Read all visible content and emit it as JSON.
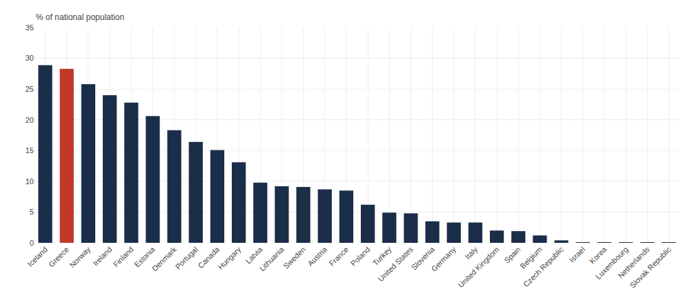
{
  "chart_data": {
    "type": "bar",
    "ylabel": "% of national population",
    "categories": [
      "Iceland",
      "Greece",
      "Norway",
      "Ireland",
      "Finland",
      "Estonia",
      "Denmark",
      "Portugal",
      "Canada",
      "Hungary",
      "Latvia",
      "Lithuania",
      "Sweden",
      "Austria",
      "France",
      "Poland",
      "Turkey",
      "United States",
      "Slovenia",
      "Germany",
      "Italy",
      "United Kingdom",
      "Spain",
      "Belgium",
      "Czech Republic",
      "Israel",
      "Korea",
      "Luxembourg",
      "Netherlands",
      "Slovak Republic"
    ],
    "values": [
      28.9,
      28.3,
      25.8,
      24.0,
      22.8,
      20.6,
      18.3,
      16.4,
      15.1,
      13.1,
      9.8,
      9.2,
      9.1,
      8.7,
      8.5,
      6.2,
      4.9,
      4.8,
      3.5,
      3.3,
      3.3,
      2.0,
      1.9,
      1.2,
      0.4,
      0.05,
      0.05,
      0.05,
      0.05,
      0.05
    ],
    "colors": [
      "#1a2e4a",
      "#c0392b",
      "#1a2e4a",
      "#1a2e4a",
      "#1a2e4a",
      "#1a2e4a",
      "#1a2e4a",
      "#1a2e4a",
      "#1a2e4a",
      "#1a2e4a",
      "#1a2e4a",
      "#1a2e4a",
      "#1a2e4a",
      "#1a2e4a",
      "#1a2e4a",
      "#1a2e4a",
      "#1a2e4a",
      "#1a2e4a",
      "#1a2e4a",
      "#1a2e4a",
      "#1a2e4a",
      "#1a2e4a",
      "#1a2e4a",
      "#1a2e4a",
      "#1a2e4a",
      "#1a2e4a",
      "#1a2e4a",
      "#1a2e4a",
      "#1a2e4a",
      "#1a2e4a"
    ],
    "ylim": [
      0,
      35
    ],
    "yticks": [
      0,
      5,
      10,
      15,
      20,
      25,
      30,
      35
    ],
    "grid": true
  }
}
